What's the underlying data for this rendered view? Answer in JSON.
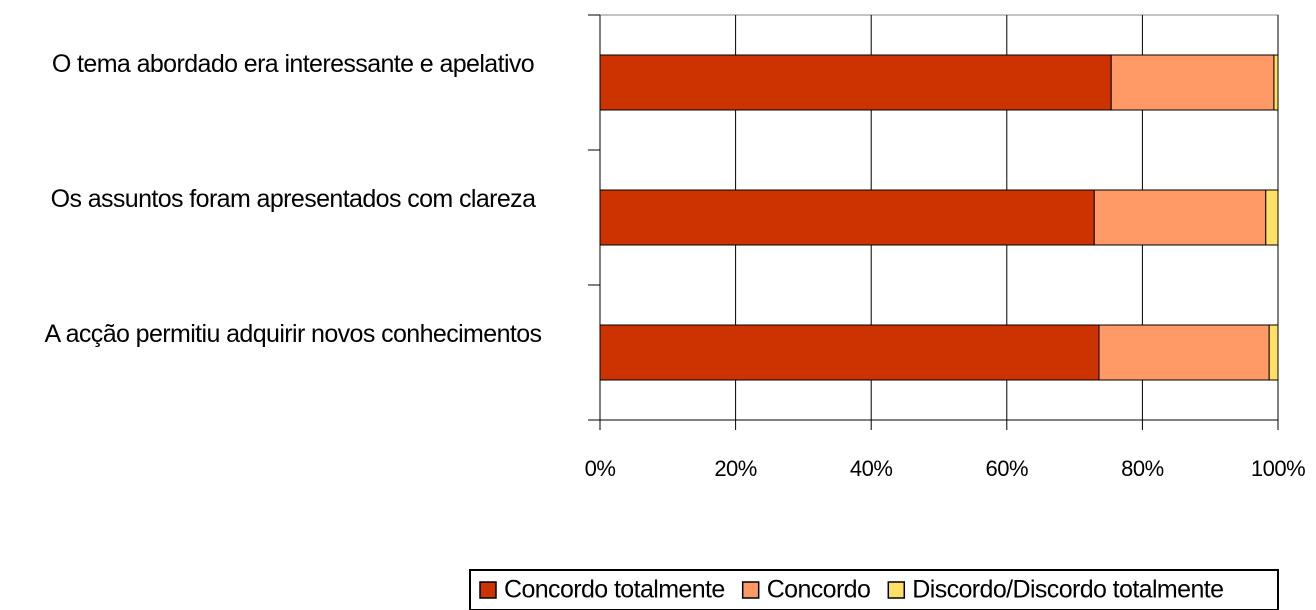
{
  "chart_data": {
    "type": "stacked-barh",
    "categories": [
      "O tema abordado era interessante e apelativo",
      "Os assuntos foram apresentados com clareza",
      "A acção permitiu adquirir novos conhecimentos"
    ],
    "series": [
      {
        "name": "Concordo totalmente",
        "color": "#cc3300",
        "values": [
          75.4,
          72.9,
          73.6
        ]
      },
      {
        "name": "Concordo",
        "color": "#ff9966",
        "values": [
          24.0,
          25.3,
          25.1
        ]
      },
      {
        "name": "Discordo/Discordo totalmente",
        "color": "#ffe066",
        "values": [
          0.6,
          1.8,
          1.3
        ]
      }
    ],
    "xlim": [
      0,
      100
    ],
    "xticks": [
      {
        "value": 0,
        "label": "0%"
      },
      {
        "value": 20,
        "label": "20%"
      },
      {
        "value": 40,
        "label": "40%"
      },
      {
        "value": 60,
        "label": "60%"
      },
      {
        "value": 80,
        "label": "80%"
      },
      {
        "value": 100,
        "label": "100%"
      }
    ],
    "grid": true,
    "legend": "bottom"
  }
}
